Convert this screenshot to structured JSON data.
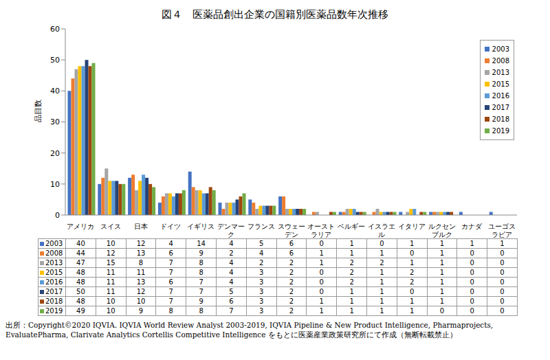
{
  "chart_data": {
    "type": "bar",
    "title": "図４　医薬品創出企業の国籍別医薬品数年次推移",
    "y_label": "品目数",
    "categories": [
      "アメリカ",
      "スイス",
      "日本",
      "ドイツ",
      "イギリス",
      "デンマーク",
      "フランス",
      "スウェーデン",
      "オーストラリア",
      "ベルギー",
      "イスラエル",
      "イタリア",
      "ルクセンブルク",
      "カナダ",
      "ユーゴスラビア"
    ],
    "series": [
      {
        "name": "2003",
        "color": "#4472c4",
        "values": [
          40,
          10,
          12,
          4,
          14,
          4,
          5,
          6,
          0,
          1,
          0,
          1,
          1,
          1,
          1
        ]
      },
      {
        "name": "2008",
        "color": "#ed7d31",
        "values": [
          44,
          12,
          13,
          6,
          9,
          2,
          4,
          6,
          1,
          1,
          1,
          0,
          1,
          0,
          0
        ]
      },
      {
        "name": "2013",
        "color": "#a5a5a5",
        "values": [
          47,
          15,
          8,
          7,
          8,
          4,
          2,
          2,
          1,
          2,
          2,
          1,
          1,
          0,
          0
        ]
      },
      {
        "name": "2015",
        "color": "#ffc000",
        "values": [
          48,
          11,
          11,
          7,
          8,
          4,
          3,
          2,
          0,
          2,
          1,
          2,
          1,
          0,
          0
        ]
      },
      {
        "name": "2016",
        "color": "#5b9bd5",
        "values": [
          48,
          11,
          13,
          6,
          7,
          4,
          3,
          2,
          0,
          2,
          1,
          2,
          1,
          0,
          0
        ]
      },
      {
        "name": "2017",
        "color": "#264478",
        "values": [
          50,
          11,
          12,
          7,
          7,
          5,
          3,
          2,
          0,
          1,
          1,
          0,
          1,
          0,
          0
        ]
      },
      {
        "name": "2018",
        "color": "#9e480e",
        "values": [
          48,
          10,
          10,
          7,
          9,
          6,
          3,
          2,
          1,
          1,
          1,
          1,
          1,
          0,
          0
        ]
      },
      {
        "name": "2019",
        "color": "#70ad47",
        "values": [
          49,
          10,
          9,
          8,
          8,
          7,
          3,
          2,
          1,
          1,
          1,
          1,
          0,
          0,
          0
        ]
      }
    ],
    "ylim": [
      0,
      60
    ],
    "yticks": [
      0,
      10,
      20,
      30,
      40,
      50,
      60
    ],
    "grid": false,
    "legend": "top-right",
    "annotations": [
      "出所：Copyright©2020 IQVIA. IQVIA World Review Analyst 2003-2019, IQVIA Pipeline & New Product Intelligence, Pharmaprojects, EvaluatePharma, Clarivate Analytics Cortellis Competitive Intelligence をもとに医薬産業政策研究所にて作成（無断転載禁止）"
    ]
  }
}
